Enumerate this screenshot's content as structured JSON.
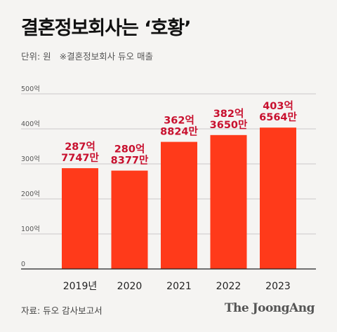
{
  "header": {
    "title": "결혼정보회사는 ‘호황’",
    "unit_label": "단위: 원",
    "note": "※결혼정보회사 듀오 매출"
  },
  "footer": {
    "source": "자료: 듀오 감사보고서",
    "brand": "The JoongAng"
  },
  "colors": {
    "bar": "#ff3a1a",
    "label": "#c8102e",
    "grid": "#bbbbbb"
  },
  "chart_data": {
    "type": "bar",
    "title": "결혼정보회사는 ‘호황’",
    "ylabel": "",
    "xlabel": "",
    "categories": [
      "2019년",
      "2020",
      "2021",
      "2022",
      "2023"
    ],
    "values": [
      28777.47,
      28083.77,
      36288.24,
      38236.5,
      40365.64
    ],
    "data_labels": [
      [
        "287억",
        "7747만"
      ],
      [
        "280억",
        "8377만"
      ],
      [
        "362억",
        "8824만"
      ],
      [
        "382억",
        "3650만"
      ],
      [
        "403억",
        "6564만"
      ]
    ],
    "ylim": [
      0,
      50000
    ],
    "yticks": [
      0,
      10000,
      20000,
      30000,
      40000,
      50000
    ],
    "ytick_labels": [
      "0",
      "100억",
      "200억",
      "300억",
      "400억",
      "500억"
    ],
    "grid": true
  }
}
